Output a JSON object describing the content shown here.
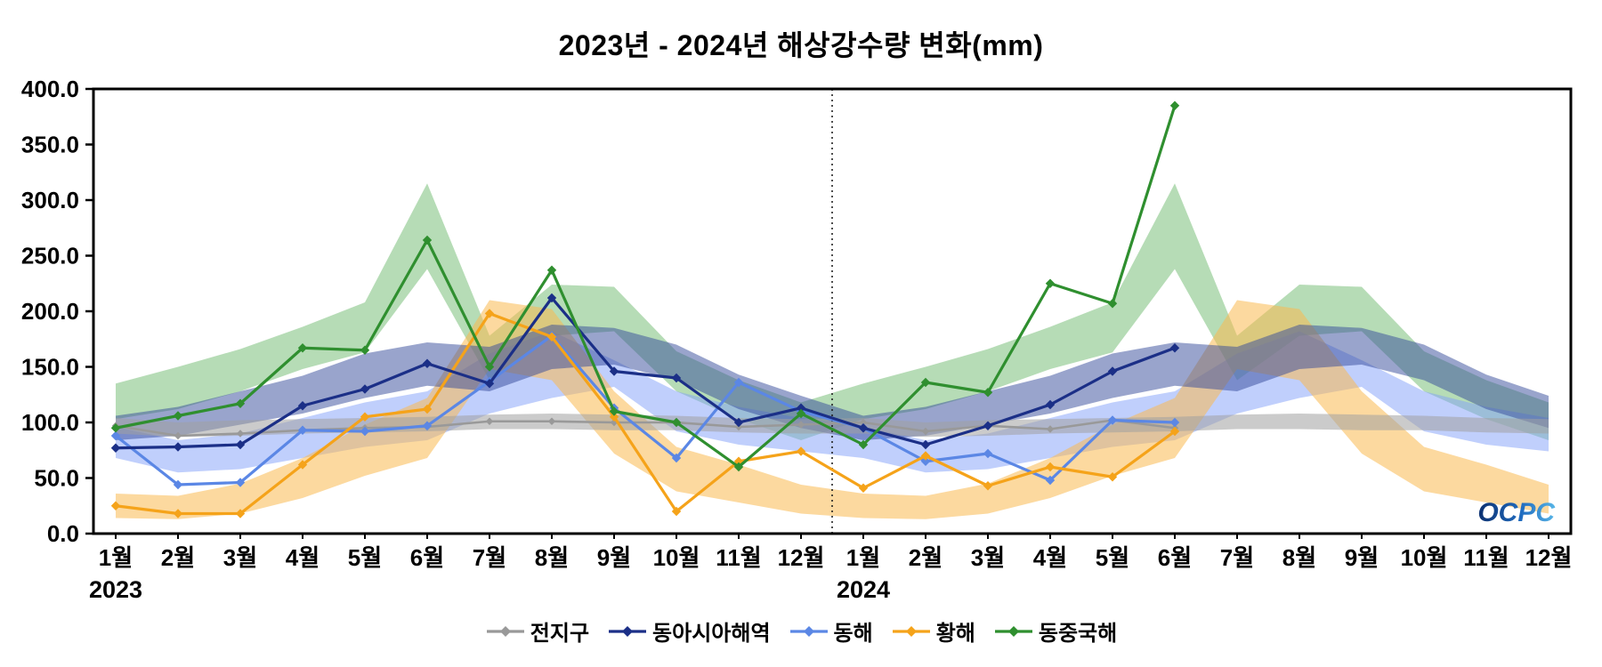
{
  "page": {
    "logo_text": "OCPC"
  },
  "chart_data": {
    "type": "line",
    "title": "2023년 - 2024년 해상강수량 변화(mm)",
    "xlabel": "",
    "ylabel": "",
    "ylim": [
      0,
      400
    ],
    "grid": false,
    "legend_position": "bottom",
    "yticks": [
      "0.0",
      "50.0",
      "100.0",
      "150.0",
      "200.0",
      "250.0",
      "300.0",
      "350.0",
      "400.0"
    ],
    "x_labels": [
      "1월",
      "2월",
      "3월",
      "4월",
      "5월",
      "6월",
      "7월",
      "8월",
      "9월",
      "10월",
      "11월",
      "12월",
      "1월",
      "2월",
      "3월",
      "4월",
      "5월",
      "6월",
      "7월",
      "8월",
      "9월",
      "10월",
      "11월",
      "12월"
    ],
    "year_labels": [
      {
        "text": "2023",
        "index": 0
      },
      {
        "text": "2024",
        "index": 12
      }
    ],
    "divider_index": 11.5,
    "series": [
      {
        "id": "global",
        "name": "전지구",
        "color": "#999999",
        "band_color": "rgba(160,160,160,0.55)",
        "values": [
          97,
          88,
          90,
          93,
          95,
          96,
          101,
          101,
          100,
          100,
          96,
          98,
          100,
          92,
          97,
          94,
          102,
          95
        ],
        "band_lower": [
          90,
          87,
          88,
          90,
          91,
          92,
          94,
          94,
          93,
          93,
          91,
          90,
          90,
          87,
          88,
          90,
          91,
          92,
          94,
          94,
          93,
          93,
          91,
          90
        ],
        "band_upper": [
          104,
          100,
          102,
          103,
          104,
          105,
          107,
          108,
          107,
          106,
          104,
          103,
          104,
          100,
          102,
          103,
          104,
          105,
          107,
          108,
          107,
          106,
          104,
          103
        ]
      },
      {
        "id": "east-asia-seas",
        "name": "동아시아해역",
        "color": "#1b2f87",
        "band_color": "rgba(52,74,154,0.5)",
        "values": [
          77,
          78,
          80,
          115,
          130,
          153,
          135,
          212,
          146,
          140,
          100,
          113,
          95,
          80,
          97,
          116,
          146,
          167
        ],
        "band_lower": [
          84,
          88,
          98,
          108,
          122,
          133,
          128,
          148,
          152,
          138,
          112,
          95,
          84,
          88,
          98,
          108,
          122,
          133,
          128,
          148,
          152,
          138,
          112,
          95
        ],
        "band_upper": [
          106,
          114,
          128,
          142,
          162,
          172,
          168,
          188,
          185,
          170,
          143,
          124,
          106,
          114,
          128,
          142,
          162,
          172,
          168,
          188,
          185,
          170,
          143,
          124
        ]
      },
      {
        "id": "east-sea",
        "name": "동해",
        "color": "#5b87e5",
        "band_color": "rgba(130,160,250,0.5)",
        "values": [
          88,
          44,
          46,
          93,
          92,
          97,
          137,
          178,
          113,
          68,
          136,
          110,
          95,
          65,
          72,
          48,
          102,
          100
        ],
        "band_lower": [
          68,
          55,
          58,
          68,
          78,
          84,
          108,
          122,
          132,
          92,
          80,
          74,
          68,
          55,
          58,
          68,
          78,
          84,
          108,
          122,
          132,
          92,
          80,
          74
        ],
        "band_upper": [
          96,
          84,
          90,
          104,
          118,
          128,
          162,
          182,
          156,
          128,
          114,
          104,
          96,
          84,
          90,
          104,
          118,
          128,
          162,
          182,
          156,
          128,
          114,
          104
        ]
      },
      {
        "id": "yellow-sea",
        "name": "황해",
        "color": "#f5a31a",
        "band_color": "rgba(250,185,80,0.55)",
        "values": [
          25,
          18,
          18,
          62,
          105,
          112,
          198,
          177,
          105,
          20,
          65,
          74,
          41,
          70,
          43,
          60,
          51,
          92
        ],
        "band_lower": [
          14,
          13,
          18,
          32,
          52,
          68,
          148,
          138,
          72,
          38,
          28,
          18,
          14,
          13,
          18,
          32,
          52,
          68,
          148,
          138,
          72,
          38,
          28,
          18
        ],
        "band_upper": [
          36,
          34,
          45,
          68,
          98,
          122,
          210,
          202,
          128,
          78,
          62,
          44,
          36,
          34,
          45,
          68,
          98,
          122,
          210,
          202,
          128,
          78,
          62,
          44
        ]
      },
      {
        "id": "east-china-sea",
        "name": "동중국해",
        "color": "#2f8f2f",
        "band_color": "rgba(110,185,110,0.5)",
        "values": [
          95,
          106,
          117,
          167,
          165,
          264,
          150,
          237,
          110,
          100,
          60,
          108,
          80,
          136,
          127,
          225,
          207,
          385
        ],
        "band_lower": [
          103,
          112,
          128,
          148,
          163,
          238,
          138,
          178,
          182,
          128,
          103,
          84,
          103,
          112,
          128,
          148,
          163,
          238,
          138,
          178,
          182,
          128,
          103,
          84
        ],
        "band_upper": [
          135,
          150,
          166,
          186,
          208,
          315,
          178,
          224,
          222,
          164,
          138,
          118,
          135,
          150,
          166,
          186,
          208,
          315,
          178,
          224,
          222,
          164,
          138,
          118
        ]
      }
    ]
  }
}
